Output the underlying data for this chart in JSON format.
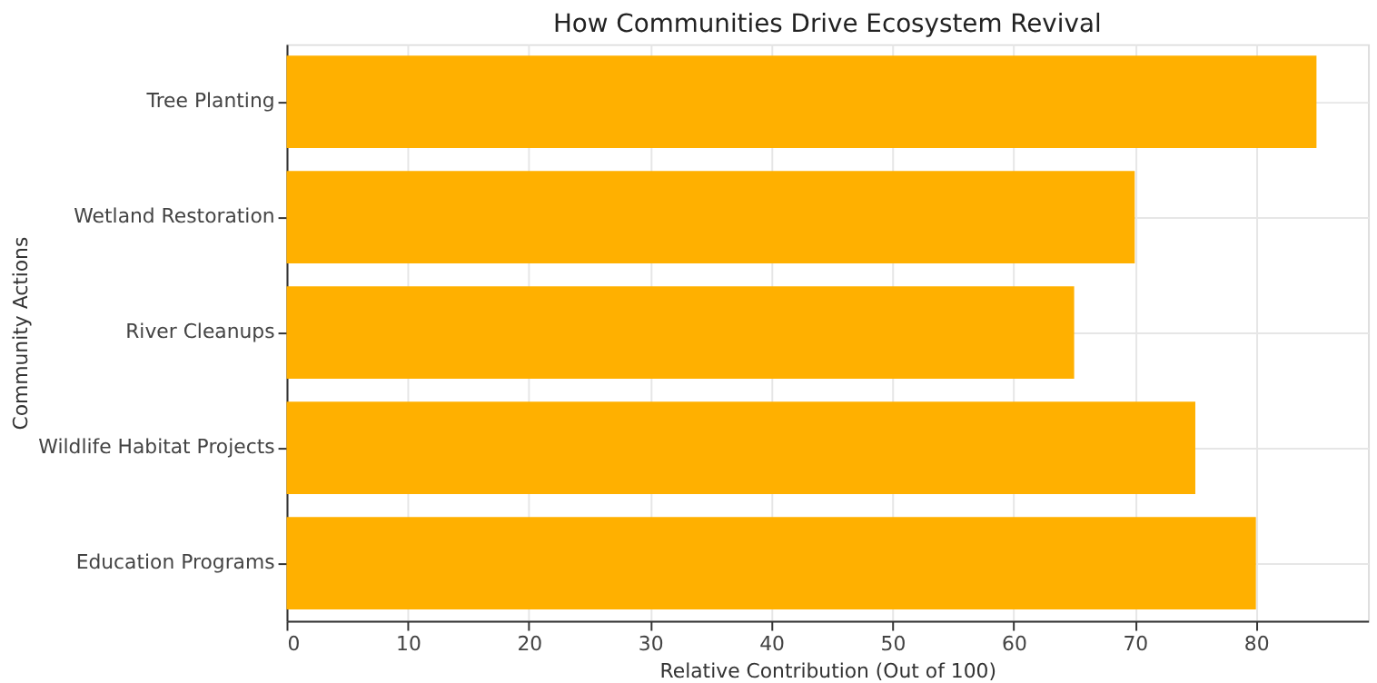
{
  "chart_data": {
    "type": "bar",
    "orientation": "horizontal",
    "title": "How Communities Drive Ecosystem Revival",
    "xlabel": "Relative Contribution (Out of 100)",
    "ylabel": "Community Actions",
    "categories": [
      "Tree Planting",
      "Wetland Restoration",
      "River Cleanups",
      "Wildlife Habitat Projects",
      "Education Programs"
    ],
    "values": [
      85,
      70,
      65,
      75,
      80
    ],
    "color": "#ffb000",
    "xlim": [
      0,
      89.25
    ],
    "xticks": [
      0,
      10,
      20,
      30,
      40,
      50,
      60,
      70,
      80
    ],
    "grid": true
  }
}
